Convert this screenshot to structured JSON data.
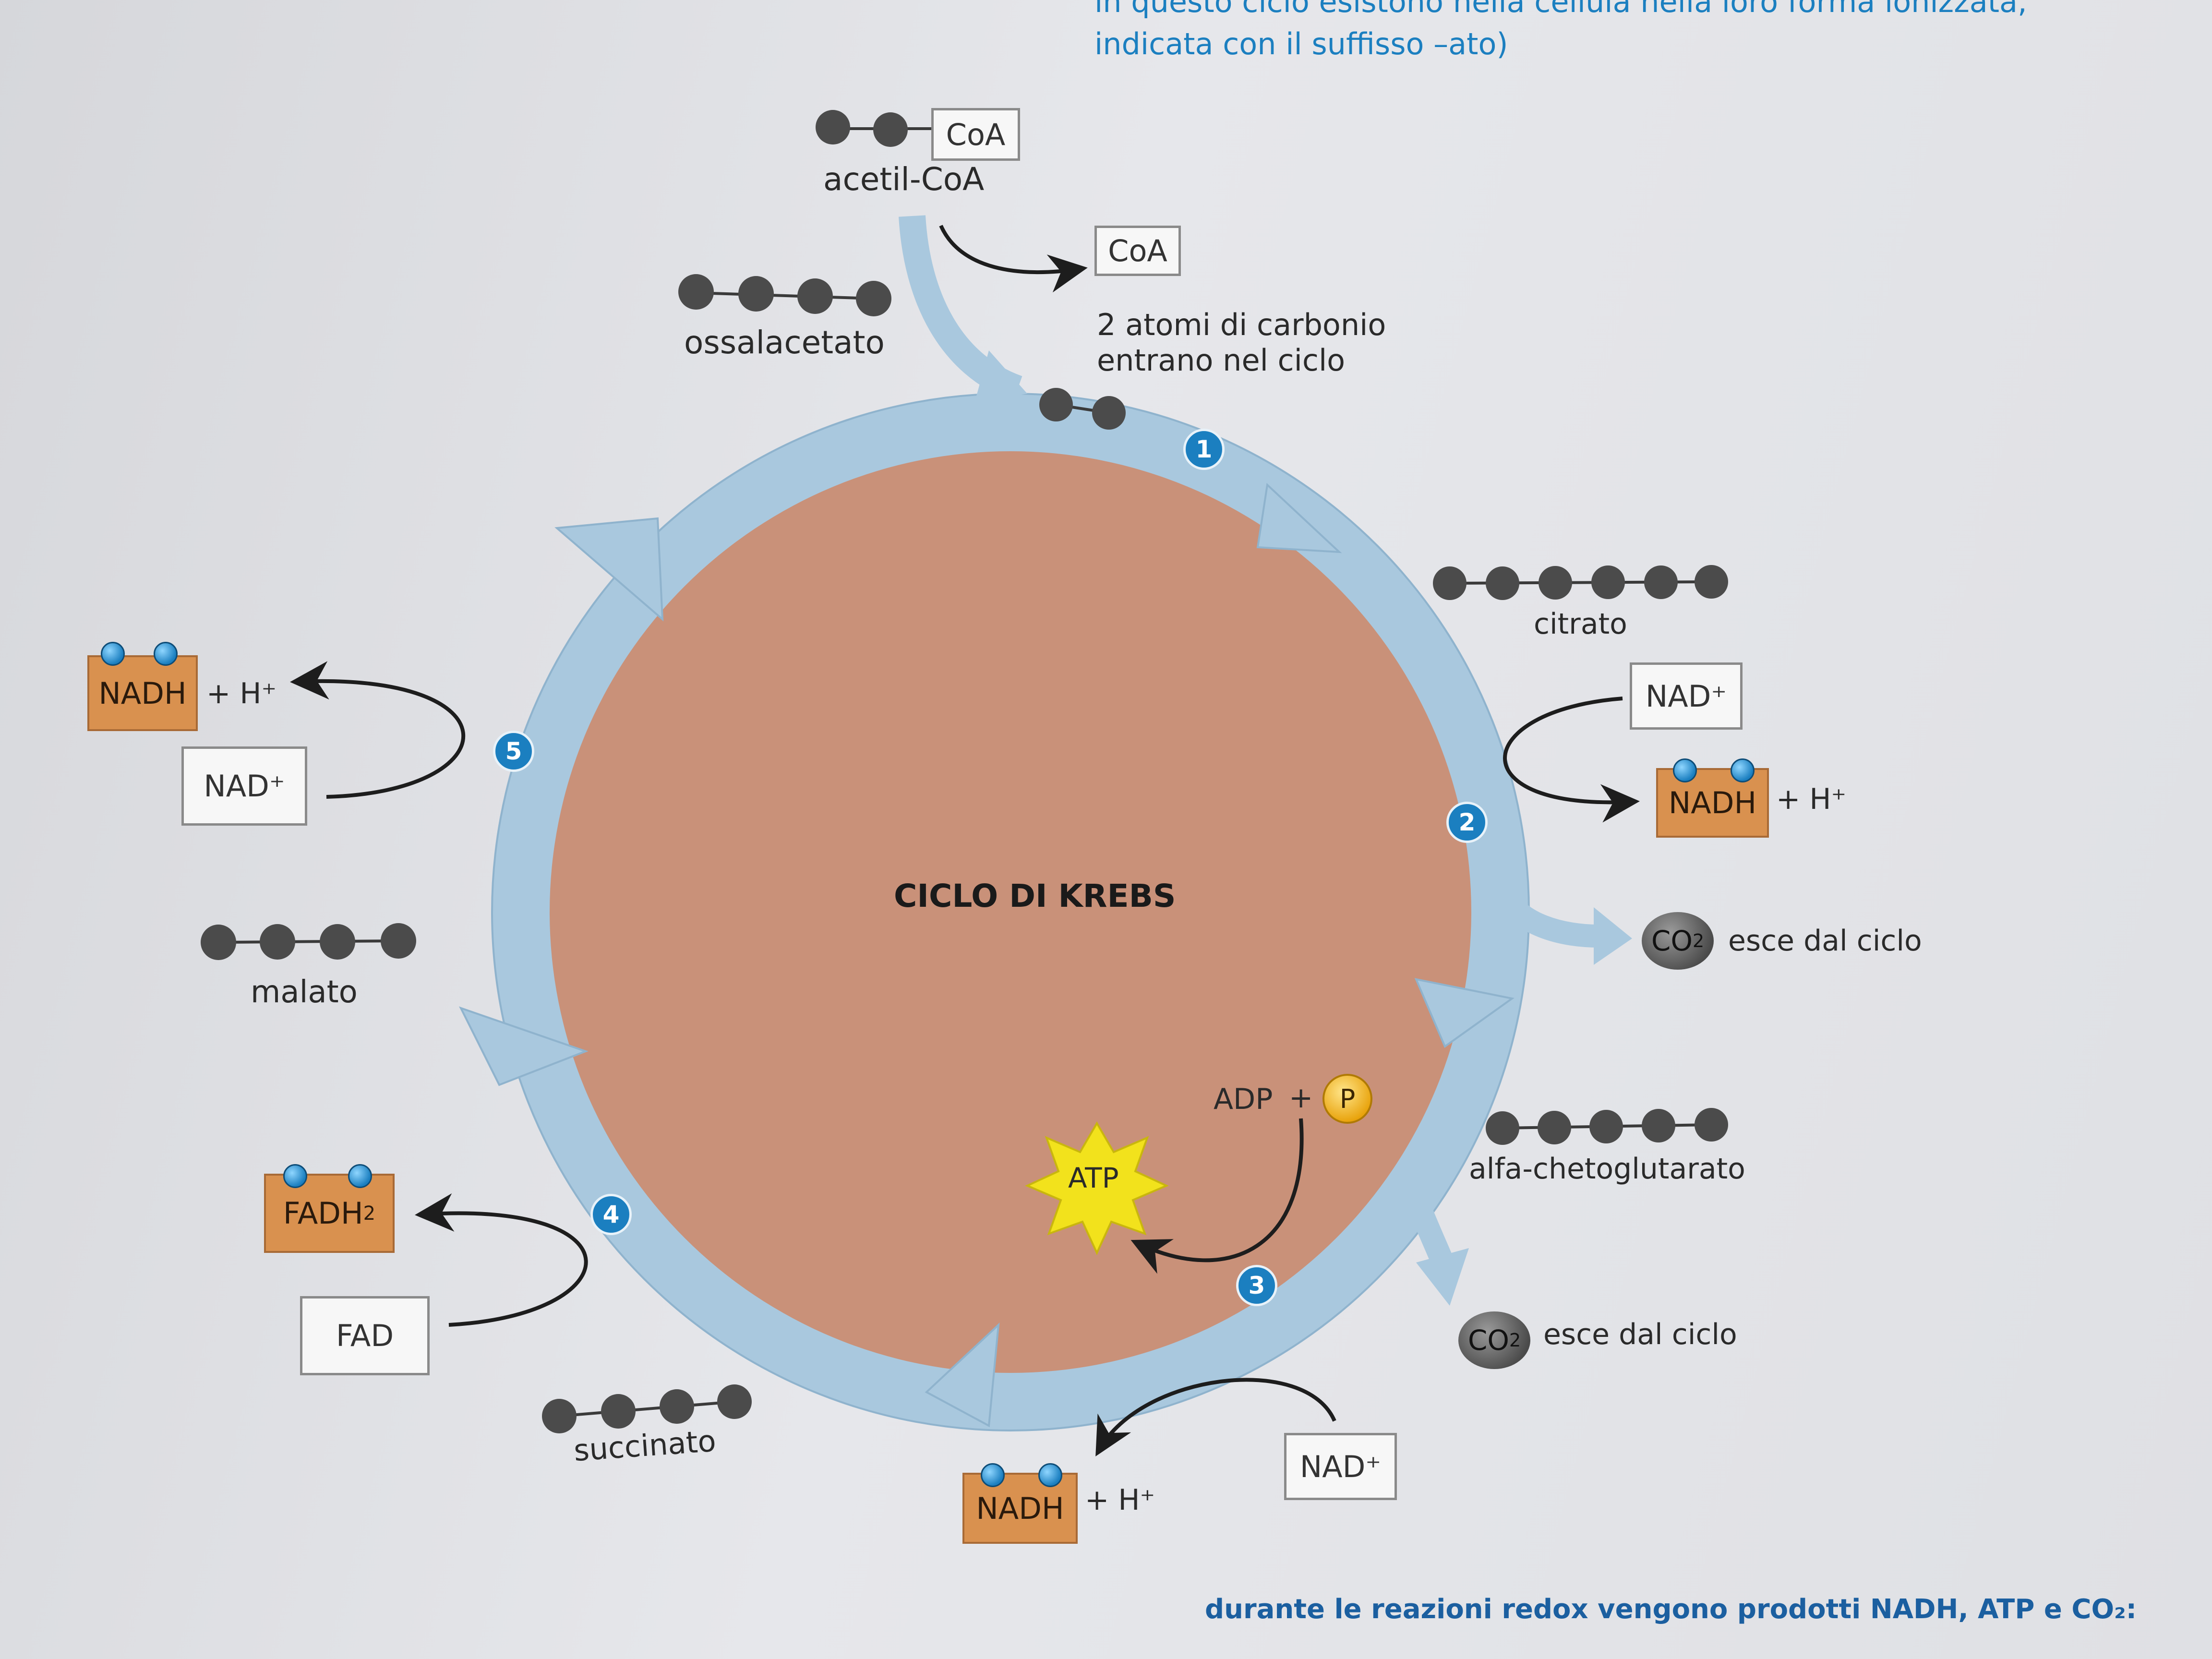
{
  "header": {
    "line1": "in questo ciclo esistono nella cellula nella loro forma ionizzata,",
    "line2": "indicata con il suffisso –ato)"
  },
  "cycle_title": "CICLO DI KREBS",
  "entry": {
    "acetyl_box": "CoA",
    "acetyl_label": "acetil-CoA",
    "coa_out": "CoA",
    "carbon_line1": "2 atomi di carbonio",
    "carbon_line2": "entrano nel ciclo"
  },
  "molecules": {
    "ossalacetato": "ossalacetato",
    "citrato": "citrato",
    "alfa": "alfa-chetoglutarato",
    "succinato": "succinato",
    "malato": "malato"
  },
  "steps": [
    "1",
    "2",
    "3",
    "4",
    "5"
  ],
  "step2": {
    "nad": "NAD⁺",
    "nadh": "NADH",
    "h": "+ H⁺",
    "co2": "CO",
    "co2_sub": "2",
    "co2_text": "esce dal ciclo"
  },
  "step3": {
    "adp": "ADP",
    "plus": "+",
    "p": "P",
    "atp": "ATP",
    "co2": "CO",
    "co2_sub": "2",
    "co2_text": "esce dal ciclo",
    "nad": "NAD⁺",
    "nadh": "NADH",
    "h": "+ H⁺"
  },
  "step4": {
    "fadh": "FADH",
    "fadh_sub": "2",
    "fad": "FAD"
  },
  "step5": {
    "nadh": "NADH",
    "h": "+ H⁺",
    "nad": "NAD⁺"
  },
  "footer": {
    "text": "durante le reazioni redox vengono prodotti NADH, ATP e CO₂:"
  },
  "colors": {
    "ring": "#a9c8de",
    "core": "#c99179",
    "accent": "#1b7fc0",
    "nadh": "#d9914f"
  }
}
